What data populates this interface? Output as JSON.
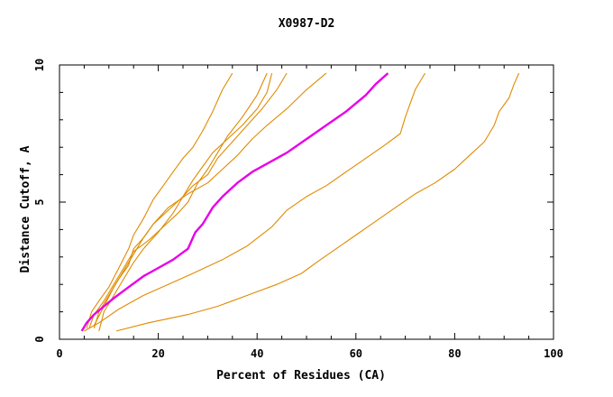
{
  "chart_data": {
    "type": "line",
    "title": "X0987-D2",
    "xlabel": "Percent of Residues (CA)",
    "ylabel": "Distance Cutoff, A",
    "xlim": [
      0,
      100
    ],
    "ylim": [
      0,
      10
    ],
    "x_ticks": [
      0,
      20,
      40,
      60,
      80,
      100
    ],
    "y_ticks": [
      0,
      5,
      10
    ],
    "grid": false,
    "legend": "none",
    "colors": {
      "models": "#e08a00",
      "highlight": "#e800e8",
      "axes": "#000000"
    },
    "series": [
      {
        "values": [
          [
            5.5,
            0.4
          ],
          [
            6.5,
            1.0
          ],
          [
            8,
            1.4
          ],
          [
            10,
            1.9
          ],
          [
            12,
            2.6
          ],
          [
            14,
            3.3
          ],
          [
            15,
            3.8
          ],
          [
            17,
            4.4
          ],
          [
            19,
            5.1
          ],
          [
            21,
            5.6
          ],
          [
            23,
            6.1
          ],
          [
            25,
            6.6
          ],
          [
            27,
            7.0
          ],
          [
            29,
            7.6
          ],
          [
            31,
            8.3
          ],
          [
            33,
            9.1
          ],
          [
            35,
            9.7
          ]
        ]
      },
      {
        "values": [
          [
            6,
            0.4
          ],
          [
            7,
            0.9
          ],
          [
            9,
            1.4
          ],
          [
            11,
            2.0
          ],
          [
            13,
            2.6
          ],
          [
            15,
            3.2
          ],
          [
            18,
            3.6
          ],
          [
            21,
            4.1
          ],
          [
            24,
            4.6
          ],
          [
            26,
            5.0
          ],
          [
            28,
            5.7
          ],
          [
            30,
            6.2
          ],
          [
            32,
            6.8
          ],
          [
            34,
            7.4
          ],
          [
            37,
            8.1
          ],
          [
            40,
            8.9
          ],
          [
            42,
            9.7
          ]
        ]
      },
      {
        "values": [
          [
            7,
            0.4
          ],
          [
            8,
            1.0
          ],
          [
            10,
            1.6
          ],
          [
            12,
            2.2
          ],
          [
            14,
            2.7
          ],
          [
            15,
            3.3
          ],
          [
            17,
            3.7
          ],
          [
            19,
            4.2
          ],
          [
            22,
            4.7
          ],
          [
            25,
            5.2
          ],
          [
            27,
            5.6
          ],
          [
            30,
            6.0
          ],
          [
            32,
            6.6
          ],
          [
            35,
            7.2
          ],
          [
            38,
            7.8
          ],
          [
            41,
            8.4
          ],
          [
            44,
            9.1
          ],
          [
            46,
            9.7
          ]
        ]
      },
      {
        "values": [
          [
            8,
            0.3
          ],
          [
            9,
            1.0
          ],
          [
            11,
            1.6
          ],
          [
            13,
            2.2
          ],
          [
            15,
            2.8
          ],
          [
            17,
            3.3
          ],
          [
            20,
            3.9
          ],
          [
            23,
            4.6
          ],
          [
            25,
            5.2
          ],
          [
            27,
            5.8
          ],
          [
            29,
            6.3
          ],
          [
            31,
            6.8
          ],
          [
            34,
            7.3
          ],
          [
            37,
            7.8
          ],
          [
            40,
            8.4
          ],
          [
            42,
            9.0
          ],
          [
            43,
            9.7
          ]
        ]
      },
      {
        "values": [
          [
            7,
            0.5
          ],
          [
            9,
            1.2
          ],
          [
            11,
            1.9
          ],
          [
            13,
            2.5
          ],
          [
            15,
            3.1
          ],
          [
            17,
            3.7
          ],
          [
            19,
            4.2
          ],
          [
            22,
            4.8
          ],
          [
            26,
            5.3
          ],
          [
            30,
            5.7
          ],
          [
            33,
            6.2
          ],
          [
            36,
            6.7
          ],
          [
            39,
            7.3
          ],
          [
            42,
            7.8
          ],
          [
            46,
            8.4
          ],
          [
            50,
            9.1
          ],
          [
            54,
            9.7
          ]
        ]
      },
      {
        "values": [
          [
            4.5,
            0.3
          ],
          [
            5.5,
            0.6
          ],
          [
            7,
            0.9
          ],
          [
            9,
            1.2
          ],
          [
            11,
            1.5
          ],
          [
            14,
            1.9
          ],
          [
            17,
            2.3
          ],
          [
            20,
            2.6
          ],
          [
            23,
            2.9
          ],
          [
            26,
            3.3
          ],
          [
            27.5,
            3.9
          ],
          [
            29,
            4.2
          ],
          [
            31,
            4.8
          ],
          [
            33,
            5.2
          ],
          [
            36,
            5.7
          ],
          [
            39,
            6.1
          ],
          [
            42,
            6.4
          ],
          [
            46,
            6.8
          ],
          [
            50,
            7.3
          ],
          [
            54,
            7.8
          ],
          [
            58,
            8.3
          ],
          [
            62,
            8.9
          ],
          [
            64,
            9.3
          ],
          [
            66.5,
            9.7
          ]
        ]
      },
      {
        "values": [
          [
            5,
            0.3
          ],
          [
            8,
            0.6
          ],
          [
            12,
            1.1
          ],
          [
            17,
            1.6
          ],
          [
            22,
            2.0
          ],
          [
            27,
            2.4
          ],
          [
            33,
            2.9
          ],
          [
            38,
            3.4
          ],
          [
            43,
            4.1
          ],
          [
            46,
            4.7
          ],
          [
            50,
            5.2
          ],
          [
            54,
            5.6
          ],
          [
            58,
            6.1
          ],
          [
            62,
            6.6
          ],
          [
            66,
            7.1
          ],
          [
            69,
            7.5
          ],
          [
            70,
            8.1
          ],
          [
            71,
            8.6
          ],
          [
            72,
            9.1
          ],
          [
            74,
            9.7
          ]
        ]
      },
      {
        "values": [
          [
            11.5,
            0.3
          ],
          [
            18,
            0.6
          ],
          [
            26,
            0.9
          ],
          [
            32,
            1.2
          ],
          [
            38,
            1.6
          ],
          [
            44,
            2.0
          ],
          [
            49,
            2.4
          ],
          [
            52,
            2.8
          ],
          [
            56,
            3.3
          ],
          [
            60,
            3.8
          ],
          [
            64,
            4.3
          ],
          [
            68,
            4.8
          ],
          [
            72,
            5.3
          ],
          [
            76,
            5.7
          ],
          [
            80,
            6.2
          ],
          [
            83,
            6.7
          ],
          [
            86,
            7.2
          ],
          [
            88,
            7.8
          ],
          [
            89,
            8.3
          ],
          [
            91,
            8.8
          ],
          [
            92,
            9.3
          ],
          [
            93,
            9.7
          ]
        ]
      }
    ],
    "highlight_index": 5
  }
}
